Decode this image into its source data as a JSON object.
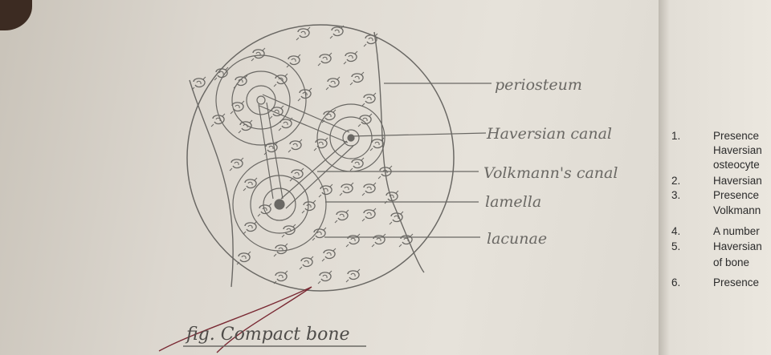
{
  "figure": {
    "labels": {
      "periosteum": "periosteum",
      "haversian_canal": "Haversian canal",
      "volkmanns_canal": "Volkmann's canal",
      "lamella": "lamella",
      "lacunae": "lacunae"
    },
    "caption": "fig. Compact bone"
  },
  "notes": [
    {
      "num": "1.",
      "text": "Presence",
      "continuation": [
        "Haversian",
        "osteocyte"
      ]
    },
    {
      "num": "2.",
      "text": "Haversian",
      "continuation": []
    },
    {
      "num": "3.",
      "text": "Presence",
      "continuation": [
        "Volkmann"
      ]
    },
    {
      "num": "4.",
      "text": "A number",
      "continuation": []
    },
    {
      "num": "5.",
      "text": "Haversian",
      "continuation": [
        "of bone"
      ]
    },
    {
      "num": "6.",
      "text": "Presence",
      "continuation": []
    }
  ],
  "colors": {
    "pencil": "#6a6864",
    "paper": "#e4e0d8"
  }
}
